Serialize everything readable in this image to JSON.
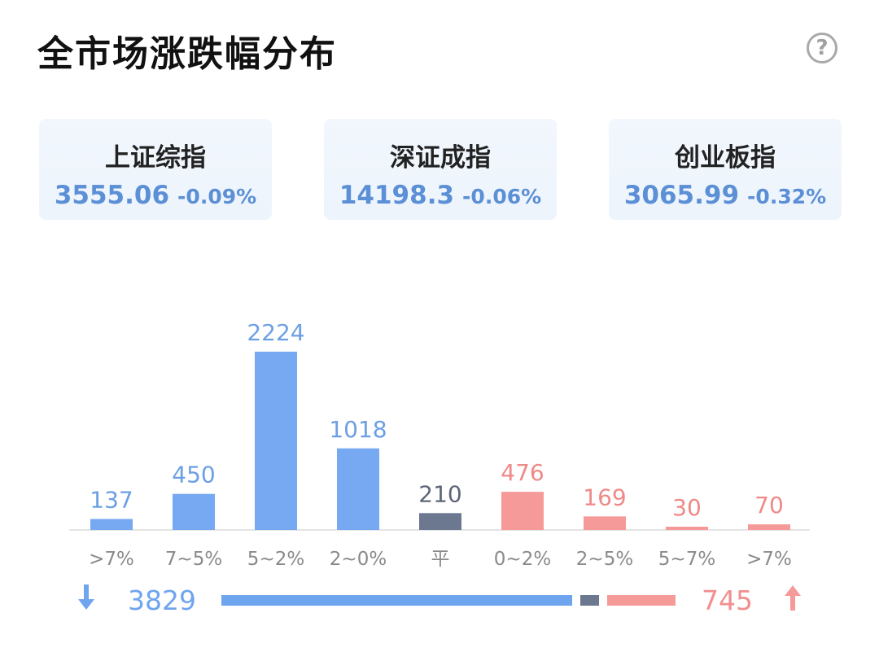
{
  "header": {
    "title": "全市场涨跌幅分布",
    "help_icon": "question-circle-icon",
    "help_label": "?"
  },
  "indices": [
    {
      "name": "上证综指",
      "value": "3555.06",
      "change": "-0.09%"
    },
    {
      "name": "深证成指",
      "value": "14198.3",
      "change": "-0.06%"
    },
    {
      "name": "创业板指",
      "value": "3065.99",
      "change": "-0.32%"
    }
  ],
  "chart_data": {
    "type": "bar",
    "categories": [
      ">7%",
      "7~5%",
      "5~2%",
      "2~0%",
      "平",
      "0~2%",
      "2~5%",
      "5~7%",
      ">7%"
    ],
    "values": [
      137,
      450,
      2224,
      1018,
      210,
      476,
      169,
      30,
      70
    ],
    "colors": [
      "#76a9f2",
      "#76a9f2",
      "#76a9f2",
      "#76a9f2",
      "#6c7790",
      "#f59a98",
      "#f59a98",
      "#f59a98",
      "#f59a98"
    ],
    "label_colors": [
      "#6c9fe3",
      "#6c9fe3",
      "#6c9fe3",
      "#6c9fe3",
      "#5d6678",
      "#ee8a88",
      "#ee8a88",
      "#ee8a88",
      "#ee8a88"
    ],
    "ylim": [
      0,
      2224
    ],
    "grid": false,
    "legend": "none"
  },
  "summary": {
    "down_icon": "arrow-down-icon",
    "down_count": "3829",
    "flat_count": 210,
    "up_count": "745",
    "up_icon": "arrow-up-icon",
    "down_color": "#6fa5ee",
    "flat_color": "#6c7790",
    "up_color": "#f59a98"
  }
}
